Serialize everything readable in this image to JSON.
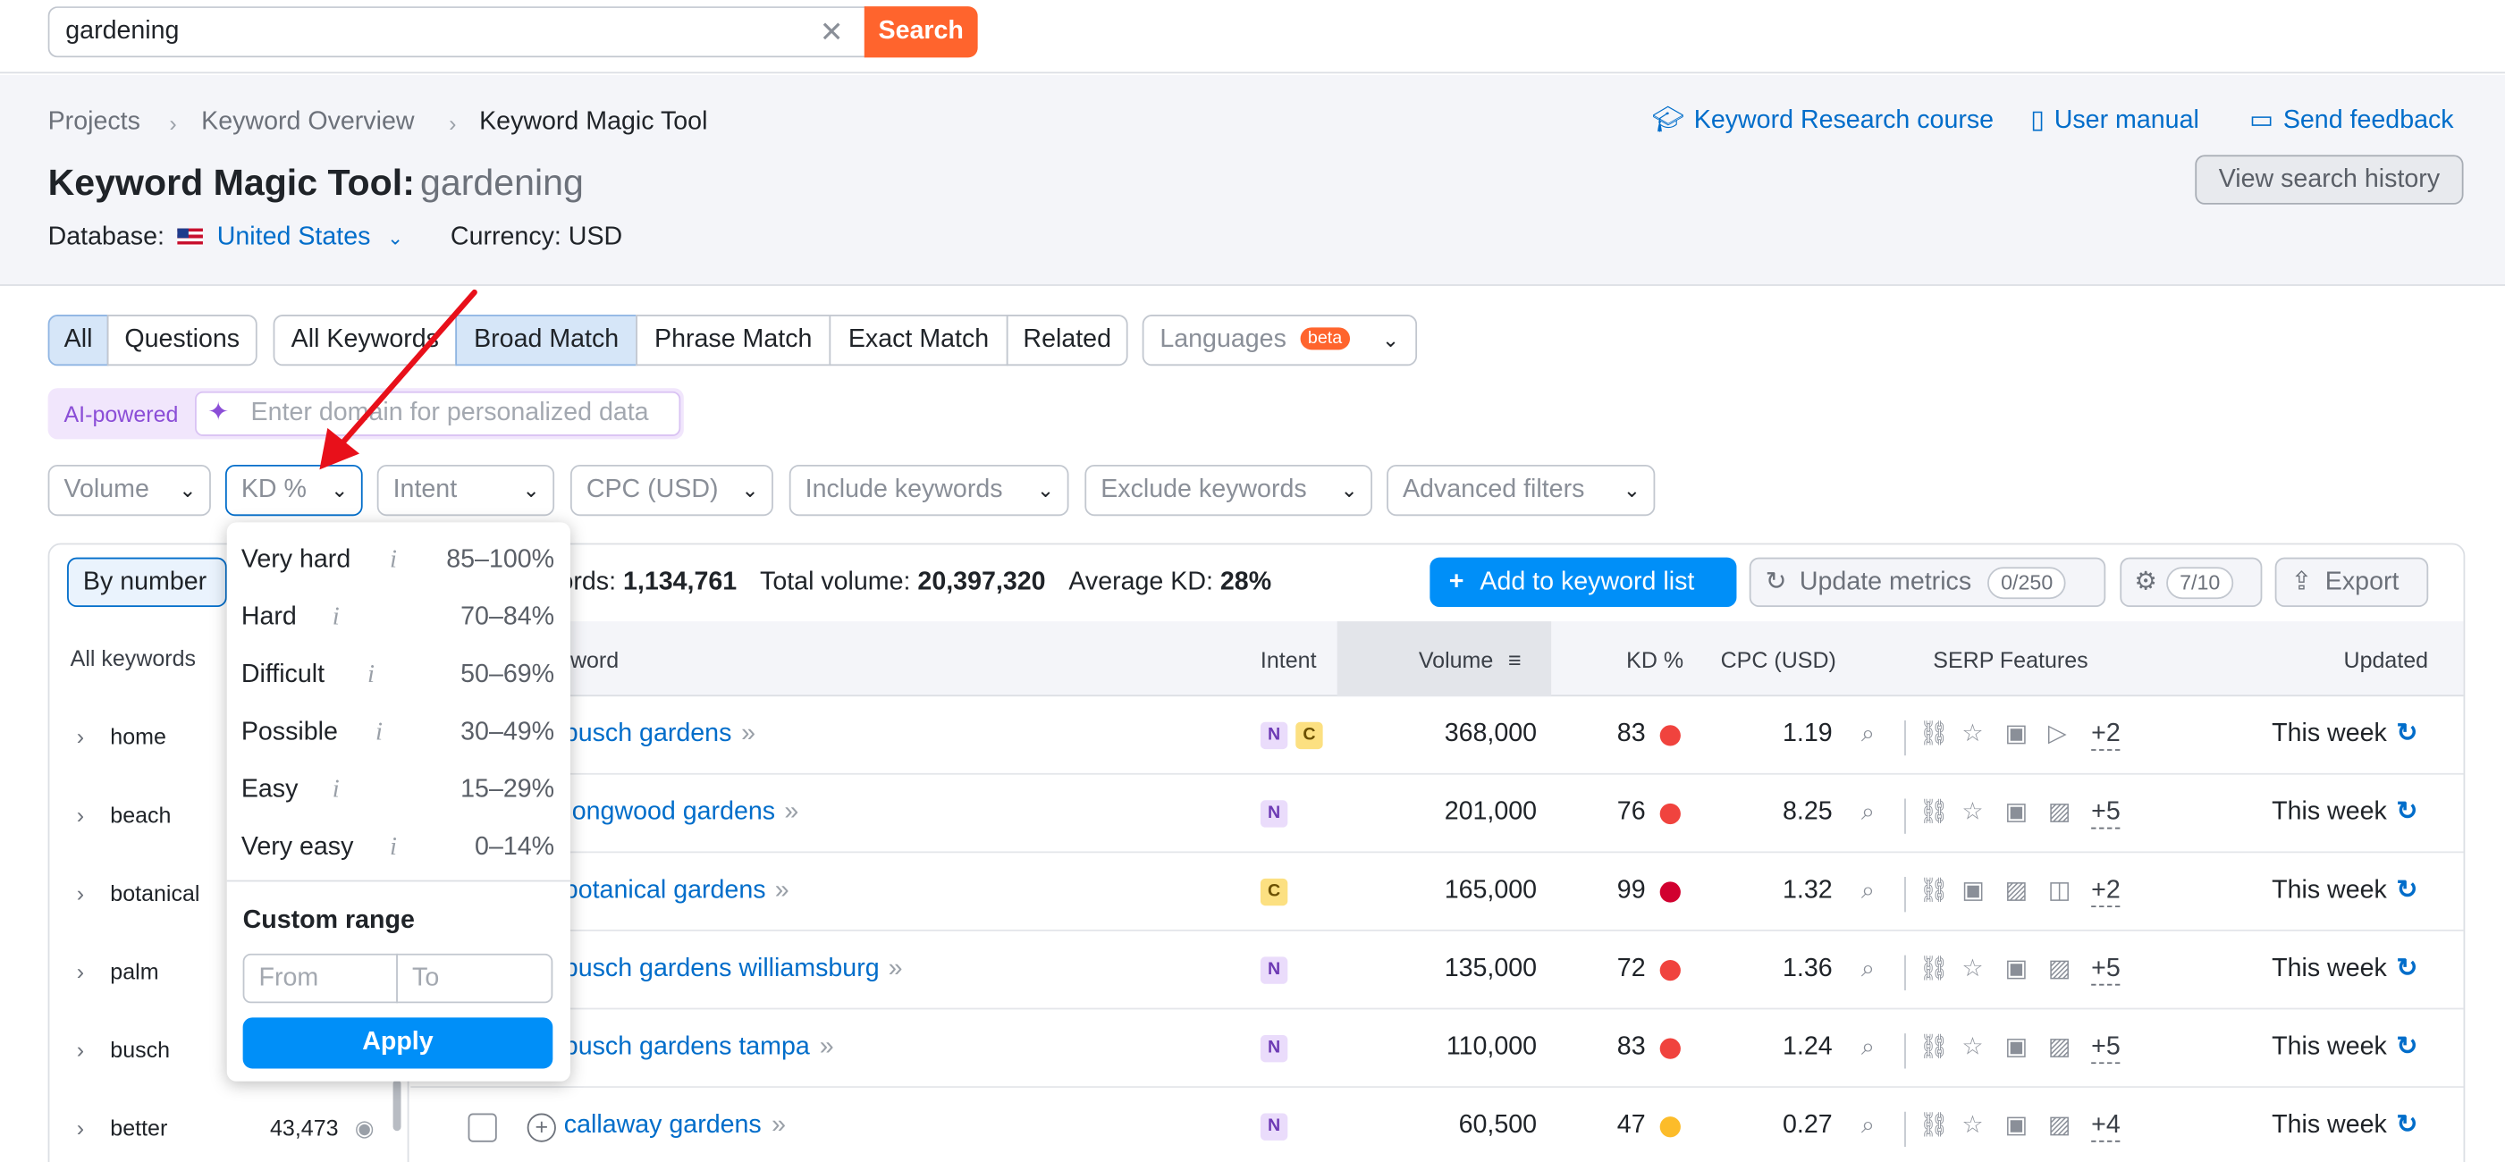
{
  "search": {
    "value": "gardening",
    "clear": "✕",
    "button": "Search"
  },
  "breadcrumb": [
    "Projects",
    "Keyword Overview",
    "Keyword Magic Tool"
  ],
  "title": {
    "label": "Keyword Magic Tool:",
    "keyword": "gardening"
  },
  "links": {
    "course": "Keyword Research course",
    "manual": "User manual",
    "feedback": "Send feedback"
  },
  "view_history": "View search history",
  "database": {
    "label": "Database:",
    "value": "United States",
    "currency": "Currency: USD"
  },
  "tabs": {
    "group1": [
      "All",
      "Questions"
    ],
    "group2": [
      "All Keywords",
      "Broad Match",
      "Phrase Match",
      "Exact Match",
      "Related"
    ],
    "languages": "Languages",
    "beta": "beta"
  },
  "ai": {
    "label": "AI-powered",
    "placeholder": "Enter domain for personalized data"
  },
  "filters": [
    "Volume",
    "KD %",
    "Intent",
    "CPC (USD)",
    "Include keywords",
    "Exclude keywords",
    "Advanced filters"
  ],
  "by_number": "By number",
  "left": {
    "header": "All keywords",
    "groups": [
      {
        "name": "home",
        "count": ""
      },
      {
        "name": "beach",
        "count": ""
      },
      {
        "name": "botanical",
        "count": ""
      },
      {
        "name": "palm",
        "count": ""
      },
      {
        "name": "busch",
        "count": ""
      },
      {
        "name": "better",
        "count": "43,473"
      }
    ]
  },
  "summary": {
    "keywords_label": "ords:",
    "keywords_value": "1,134,761",
    "volume_label": "Total volume:",
    "volume_value": "20,397,320",
    "kd_label": "Average KD:",
    "kd_value": "28%"
  },
  "actions": {
    "add_list": "Add to keyword list",
    "update": "Update metrics",
    "update_count": "0/250",
    "settings_count": "7/10",
    "export": "Export"
  },
  "table": {
    "headers": {
      "keyword": "word",
      "intent": "Intent",
      "volume": "Volume",
      "kd": "KD %",
      "cpc": "CPC (USD)",
      "serp": "SERP Features",
      "updated": "Updated"
    },
    "rows": [
      {
        "keyword": "busch gardens",
        "kw_display": "busch gardens",
        "intent": [
          "N",
          "C"
        ],
        "volume": "368,000",
        "kd": "83",
        "kd_color": "#f0433e",
        "cpc": "1.19",
        "serp_more": "+2",
        "updated": "This week"
      },
      {
        "keyword": "longwood gardens",
        "kw_display": "ongwood gardens",
        "intent": [
          "N"
        ],
        "volume": "201,000",
        "kd": "76",
        "kd_color": "#f0433e",
        "cpc": "8.25",
        "serp_more": "+5",
        "updated": "This week"
      },
      {
        "keyword": "botanical gardens",
        "kw_display": "botanical gardens",
        "intent": [
          "C"
        ],
        "volume": "165,000",
        "kd": "99",
        "kd_color": "#d1002f",
        "cpc": "1.32",
        "serp_more": "+2",
        "updated": "This week"
      },
      {
        "keyword": "busch gardens williamsburg",
        "kw_display": "busch gardens williamsburg",
        "intent": [
          "N"
        ],
        "volume": "135,000",
        "kd": "72",
        "kd_color": "#f0433e",
        "cpc": "1.36",
        "serp_more": "+5",
        "updated": "This week"
      },
      {
        "keyword": "busch gardens tampa",
        "kw_display": "busch gardens tampa",
        "intent": [
          "N"
        ],
        "volume": "110,000",
        "kd": "83",
        "kd_color": "#f0433e",
        "cpc": "1.24",
        "serp_more": "+5",
        "updated": "This week"
      },
      {
        "keyword": "callaway gardens",
        "kw_display": "callaway gardens",
        "intent": [
          "N"
        ],
        "volume": "60,500",
        "kd": "47",
        "kd_color": "#fcbc2a",
        "cpc": "0.27",
        "serp_more": "+4",
        "updated": "This week"
      }
    ]
  },
  "kd_dropdown": {
    "options": [
      {
        "label": "Very hard",
        "range": "85–100%"
      },
      {
        "label": "Hard",
        "range": "70–84%"
      },
      {
        "label": "Difficult",
        "range": "50–69%"
      },
      {
        "label": "Possible",
        "range": "30–49%"
      },
      {
        "label": "Easy",
        "range": "15–29%"
      },
      {
        "label": "Very easy",
        "range": "0–14%"
      }
    ],
    "info": "i",
    "custom_label": "Custom range",
    "from": "From",
    "to": "To",
    "apply": "Apply"
  },
  "colors": {
    "accent": "#006dca",
    "brand": "#ff642d",
    "primary_button": "#008ff8",
    "annotation_arrow": "#e8101a"
  }
}
